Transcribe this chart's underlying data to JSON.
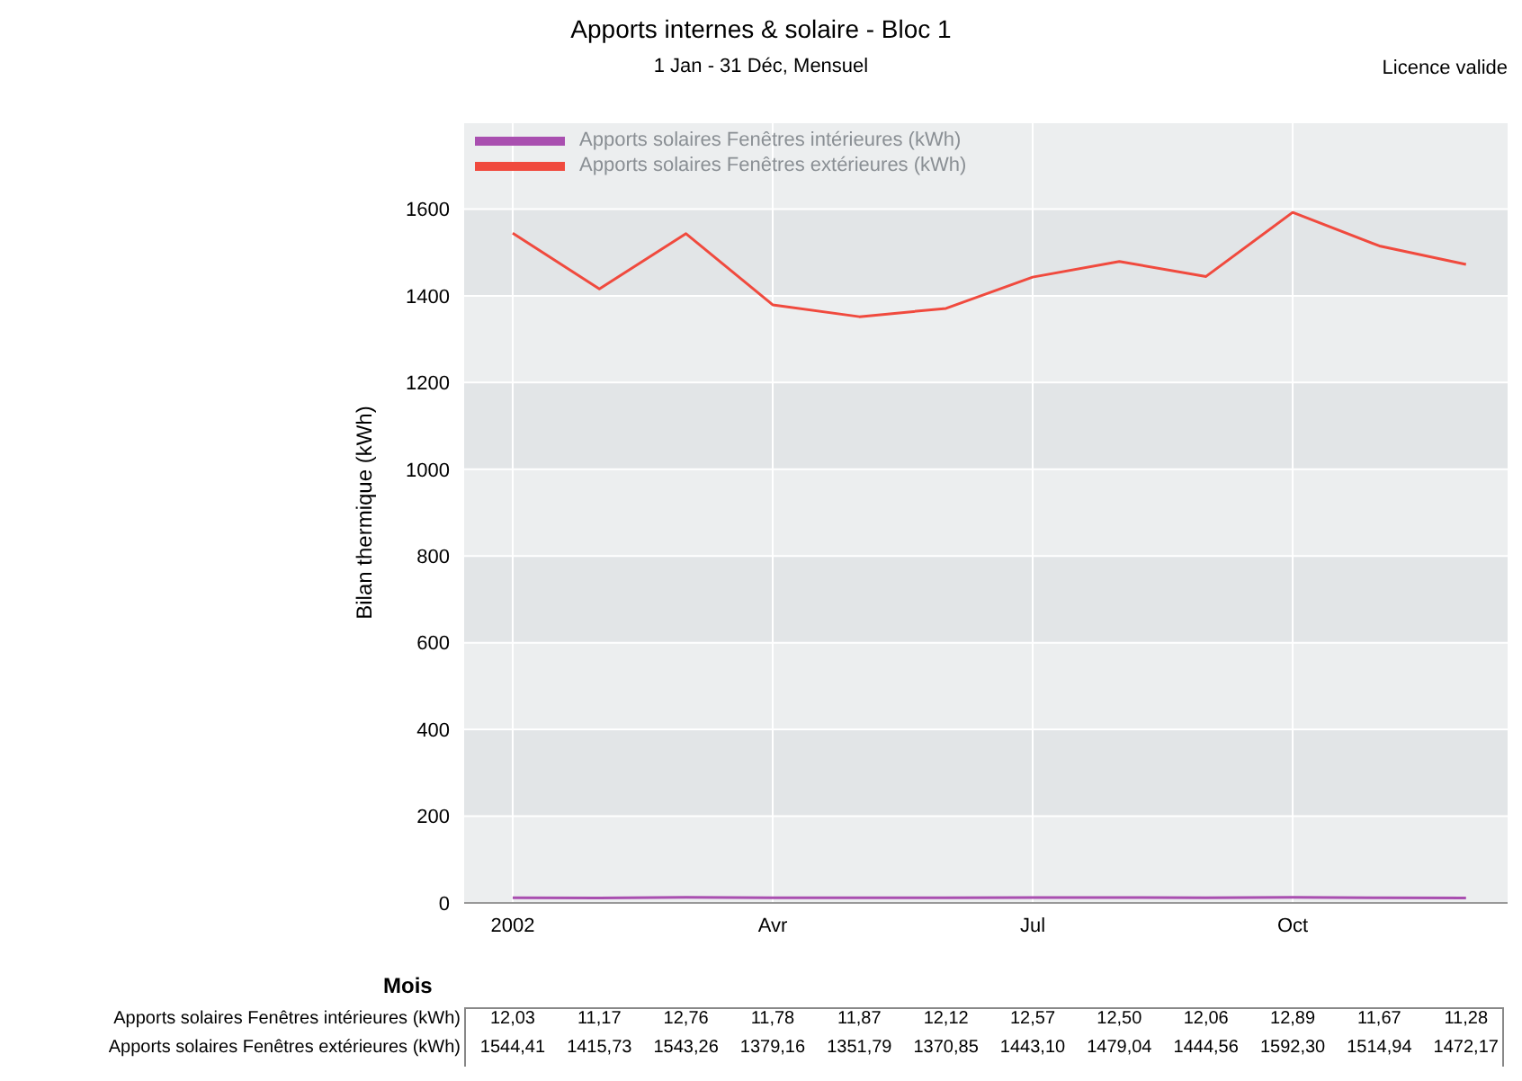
{
  "chart_data": {
    "type": "line",
    "title": "Apports internes & solaire - Bloc 1",
    "subtitle": "1 Jan - 31 Déc, Mensuel",
    "annotations": [
      "Licence valide"
    ],
    "xlabel": "Mois",
    "ylabel": "Bilan thermique (kWh)",
    "categories": [
      "2002",
      null,
      null,
      "Avr",
      null,
      null,
      "Jul",
      null,
      null,
      "Oct",
      null,
      null
    ],
    "series": [
      {
        "name": "Apports solaires Fenêtres intérieures (kWh)",
        "color": "#a94fb0",
        "values": [
          12.03,
          11.17,
          12.76,
          11.78,
          11.87,
          12.12,
          12.57,
          12.5,
          12.06,
          12.89,
          11.67,
          11.28
        ],
        "value_labels": [
          "12,03",
          "11,17",
          "12,76",
          "11,78",
          "11,87",
          "12,12",
          "12,57",
          "12,50",
          "12,06",
          "12,89",
          "11,67",
          "11,28"
        ]
      },
      {
        "name": "Apports solaires Fenêtres extérieures (kWh)",
        "color": "#f04a3e",
        "values": [
          1544.41,
          1415.73,
          1543.26,
          1379.16,
          1351.79,
          1370.85,
          1443.1,
          1479.04,
          1444.56,
          1592.3,
          1514.94,
          1472.17
        ],
        "value_labels": [
          "1544,41",
          "1415,73",
          "1543,26",
          "1379,16",
          "1351,79",
          "1370,85",
          "1443,10",
          "1479,04",
          "1444,56",
          "1592,30",
          "1514,94",
          "1472,17"
        ]
      }
    ],
    "ylim": [
      0,
      1800
    ],
    "yticks": [
      0,
      200,
      400,
      600,
      800,
      1000,
      1200,
      1400,
      1600
    ],
    "grid": true,
    "legend": "top left",
    "marker": "none",
    "line_style": "solid"
  }
}
